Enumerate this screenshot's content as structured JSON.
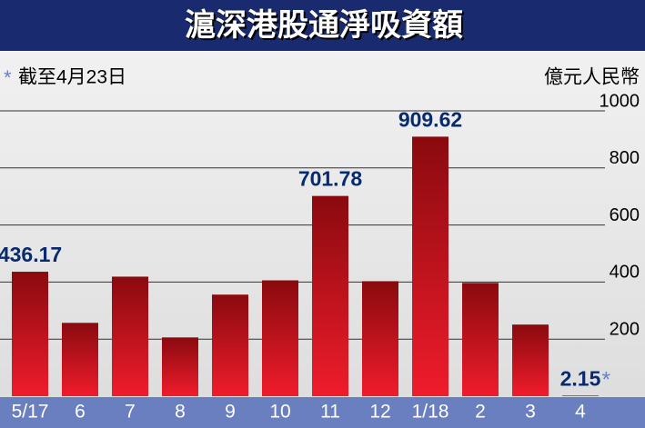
{
  "chart_data": {
    "type": "bar",
    "title": "滬深港股通淨吸資額",
    "note_marker": "*",
    "note": "截至4月23日",
    "y_label": "億元人民幣",
    "categories": [
      "5/17",
      "6",
      "7",
      "8",
      "9",
      "10",
      "11",
      "12",
      "1/18",
      "2",
      "3",
      "4"
    ],
    "values": [
      436.17,
      257,
      419,
      206,
      356,
      406,
      701.78,
      403,
      909.62,
      397,
      251,
      2.15
    ],
    "value_labels": [
      "436.17",
      null,
      null,
      null,
      null,
      null,
      "701.78",
      null,
      "909.62",
      null,
      null,
      "2.15"
    ],
    "color": "#c8102e",
    "ylim": [
      0,
      1000
    ],
    "yticks": [
      200,
      400,
      600,
      800,
      1000
    ],
    "grid": true
  }
}
